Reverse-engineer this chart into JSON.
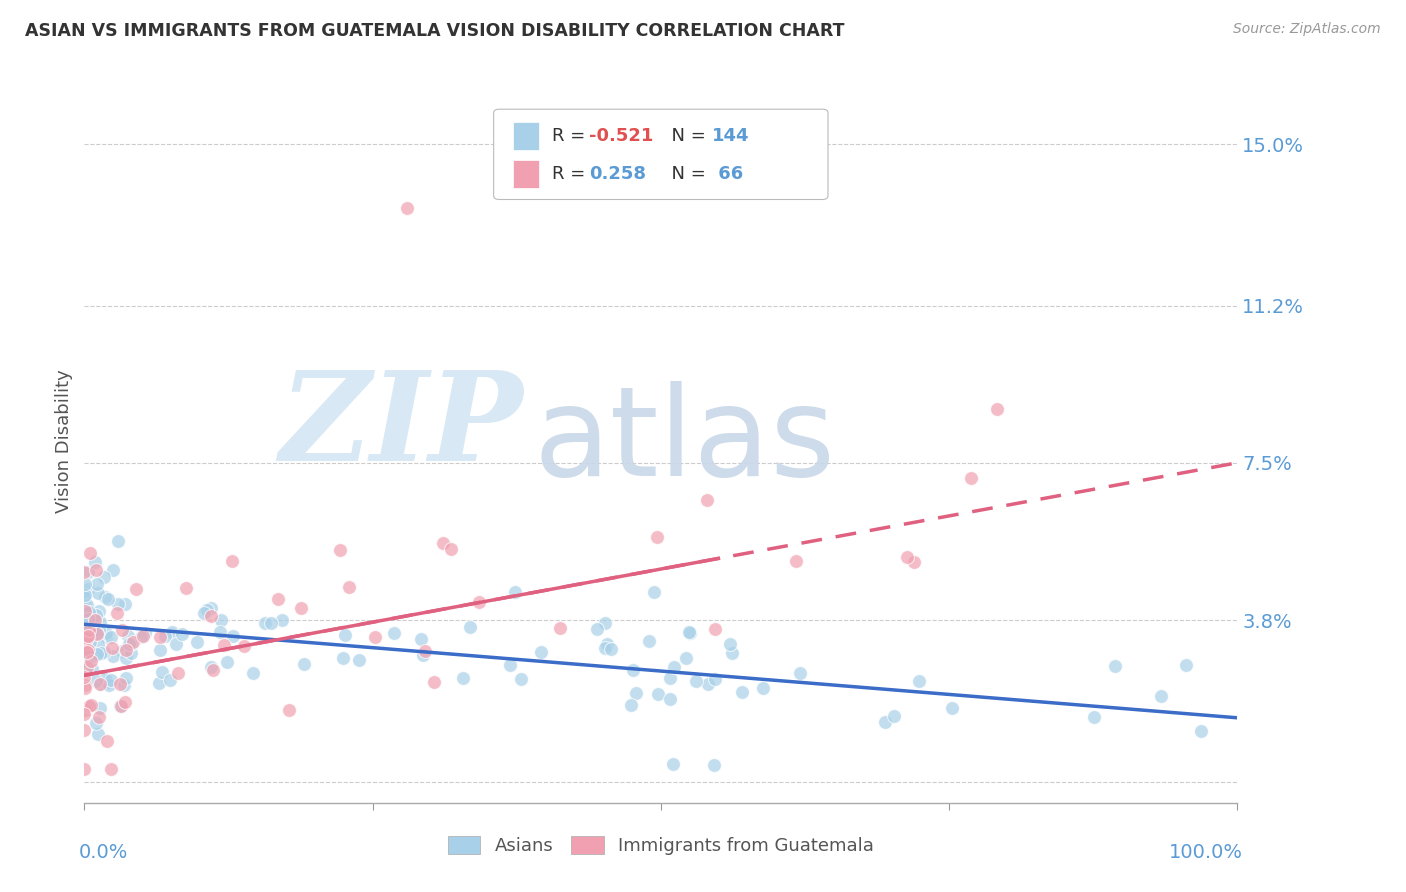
{
  "title": "ASIAN VS IMMIGRANTS FROM GUATEMALA VISION DISABILITY CORRELATION CHART",
  "source": "Source: ZipAtlas.com",
  "ylabel": "Vision Disability",
  "yticks": [
    0.0,
    0.038,
    0.075,
    0.112,
    0.15
  ],
  "ytick_labels": [
    "",
    "3.8%",
    "7.5%",
    "11.2%",
    "15.0%"
  ],
  "ylim": [
    -0.005,
    0.165
  ],
  "xlim": [
    0.0,
    1.0
  ],
  "asian_color": "#A8D0E8",
  "guate_color": "#F0A0B0",
  "asian_trend_color": "#3A6CC8",
  "guate_trend_color": "#E06080",
  "background_color": "#FFFFFF",
  "grid_color": "#CCCCCC",
  "ytick_color": "#5B9BD5",
  "xtick_color": "#5B9BD5",
  "title_color": "#333333",
  "source_color": "#999999"
}
